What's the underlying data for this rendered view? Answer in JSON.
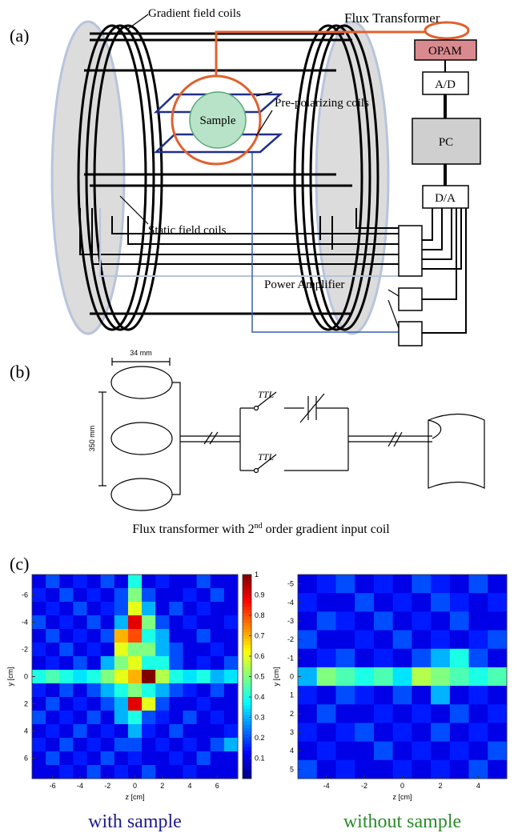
{
  "panel_a": {
    "label": "(a)",
    "gradient": "Gradient field coils",
    "flux": "Flux Transformer",
    "opam": "OPAM",
    "ad": "A/D",
    "prepol": "Pre-polarizing coils",
    "sample": "Sample",
    "pc": "PC",
    "static": "Static field coils",
    "da": "D/A",
    "amp": "Power Amplifier"
  },
  "panel_b": {
    "label": "(b)",
    "width": "34 mm",
    "height": "350 mm",
    "switch_1": "TTL",
    "switch_2": "TTL",
    "caption_pre": "Flux transformer with 2",
    "caption_sup": "nd",
    "caption_post": " order gradient input coil"
  },
  "panel_c": {
    "label": "(c)",
    "maps": [
      {
        "xlabel": "z [cm]",
        "ylabel": "y [cm]",
        "xlim": [
          -7.5,
          7.5
        ],
        "ylim": [
          -7.5,
          7.5
        ],
        "xticks": [
          -6,
          -4,
          -2,
          0,
          2,
          4,
          6
        ],
        "yticks": [
          -6,
          -4,
          -2,
          0,
          2,
          4,
          6
        ],
        "clim": [
          0,
          1
        ],
        "colorbar_ticks": [
          0.1,
          0.2,
          0.3,
          0.4,
          0.5,
          0.6,
          0.7,
          0.8,
          0.9,
          1
        ],
        "caption": "with sample",
        "caption_color": "#1c1c8a",
        "values": [
          [
            0.1,
            0.2,
            0.1,
            0.15,
            0.1,
            0.2,
            0.1,
            0.4,
            0.1,
            0.15,
            0.1,
            0.1,
            0.2,
            0.1,
            0.1
          ],
          [
            0.15,
            0.1,
            0.2,
            0.1,
            0.15,
            0.1,
            0.2,
            0.5,
            0.2,
            0.1,
            0.1,
            0.15,
            0.1,
            0.2,
            0.1
          ],
          [
            0.1,
            0.15,
            0.1,
            0.2,
            0.1,
            0.15,
            0.2,
            0.6,
            0.3,
            0.1,
            0.2,
            0.1,
            0.15,
            0.1,
            0.1
          ],
          [
            0.2,
            0.1,
            0.15,
            0.1,
            0.2,
            0.1,
            0.3,
            0.9,
            0.5,
            0.2,
            0.1,
            0.15,
            0.1,
            0.1,
            0.15
          ],
          [
            0.1,
            0.2,
            0.1,
            0.15,
            0.1,
            0.2,
            0.7,
            0.8,
            0.4,
            0.3,
            0.1,
            0.1,
            0.2,
            0.1,
            0.1
          ],
          [
            0.15,
            0.1,
            0.2,
            0.1,
            0.15,
            0.1,
            0.6,
            0.5,
            0.5,
            0.3,
            0.2,
            0.1,
            0.1,
            0.15,
            0.1
          ],
          [
            0.1,
            0.15,
            0.1,
            0.2,
            0.1,
            0.3,
            0.5,
            0.6,
            0.4,
            0.4,
            0.2,
            0.1,
            0.15,
            0.1,
            0.2
          ],
          [
            0.4,
            0.45,
            0.4,
            0.35,
            0.4,
            0.5,
            0.6,
            0.7,
            1,
            0.55,
            0.4,
            0.35,
            0.4,
            0.3,
            0.35
          ],
          [
            0.15,
            0.1,
            0.2,
            0.1,
            0.2,
            0.3,
            0.4,
            0.5,
            0.4,
            0.3,
            0.2,
            0.15,
            0.1,
            0.2,
            0.1
          ],
          [
            0.1,
            0.2,
            0.1,
            0.15,
            0.1,
            0.2,
            0.3,
            0.9,
            0.6,
            0.2,
            0.1,
            0.1,
            0.15,
            0.1,
            0.1
          ],
          [
            0.2,
            0.1,
            0.15,
            0.1,
            0.2,
            0.1,
            0.3,
            0.4,
            0.2,
            0.15,
            0.1,
            0.2,
            0.1,
            0.15,
            0.1
          ],
          [
            0.1,
            0.15,
            0.1,
            0.2,
            0.1,
            0.15,
            0.1,
            0.3,
            0.15,
            0.1,
            0.2,
            0.1,
            0.1,
            0.1,
            0.15
          ],
          [
            0.15,
            0.1,
            0.2,
            0.1,
            0.15,
            0.1,
            0.2,
            0.2,
            0.1,
            0.15,
            0.1,
            0.15,
            0.1,
            0.2,
            0.3
          ],
          [
            0.1,
            0.2,
            0.1,
            0.15,
            0.1,
            0.2,
            0.1,
            0.15,
            0.1,
            0.1,
            0.15,
            0.1,
            0.2,
            0.1,
            0.1
          ],
          [
            0.1,
            0.1,
            0.15,
            0.1,
            0.2,
            0.1,
            0.15,
            0.1,
            0.2,
            0.1,
            0.1,
            0.15,
            0.1,
            0.1,
            0.1
          ]
        ]
      },
      {
        "xlabel": "z [cm]",
        "ylabel": "y [cm]",
        "xlim": [
          -5.5,
          5.5
        ],
        "ylim": [
          -5.5,
          5.5
        ],
        "xticks": [
          -4,
          -2,
          0,
          2,
          4
        ],
        "yticks": [
          -5,
          -4,
          -3,
          -2,
          -1,
          0,
          1,
          2,
          3,
          4,
          5
        ],
        "clim": [
          0,
          1
        ],
        "caption": "without sample",
        "caption_color": "#2a8a2a",
        "values": [
          [
            0.1,
            0.15,
            0.2,
            0.1,
            0.15,
            0.1,
            0.2,
            0.15,
            0.1,
            0.2,
            0.1
          ],
          [
            0.15,
            0.1,
            0.1,
            0.2,
            0.1,
            0.15,
            0.1,
            0.2,
            0.15,
            0.1,
            0.15
          ],
          [
            0.1,
            0.2,
            0.15,
            0.1,
            0.2,
            0.1,
            0.15,
            0.1,
            0.2,
            0.1,
            0.1
          ],
          [
            0.2,
            0.1,
            0.1,
            0.15,
            0.1,
            0.2,
            0.1,
            0.15,
            0.1,
            0.15,
            0.2
          ],
          [
            0.1,
            0.15,
            0.2,
            0.1,
            0.15,
            0.1,
            0.2,
            0.3,
            0.4,
            0.2,
            0.1
          ],
          [
            0.3,
            0.5,
            0.45,
            0.4,
            0.45,
            0.35,
            0.55,
            0.5,
            0.45,
            0.4,
            0.45
          ],
          [
            0.15,
            0.1,
            0.2,
            0.15,
            0.1,
            0.2,
            0.1,
            0.3,
            0.1,
            0.15,
            0.1
          ],
          [
            0.1,
            0.2,
            0.1,
            0.1,
            0.15,
            0.1,
            0.15,
            0.1,
            0.2,
            0.1,
            0.15
          ],
          [
            0.15,
            0.1,
            0.15,
            0.2,
            0.1,
            0.15,
            0.1,
            0.2,
            0.1,
            0.15,
            0.1
          ],
          [
            0.1,
            0.15,
            0.1,
            0.1,
            0.2,
            0.1,
            0.15,
            0.1,
            0.15,
            0.1,
            0.2
          ],
          [
            0.2,
            0.1,
            0.15,
            0.1,
            0.1,
            0.15,
            0.1,
            0.15,
            0.1,
            0.2,
            0.1
          ]
        ]
      }
    ]
  }
}
